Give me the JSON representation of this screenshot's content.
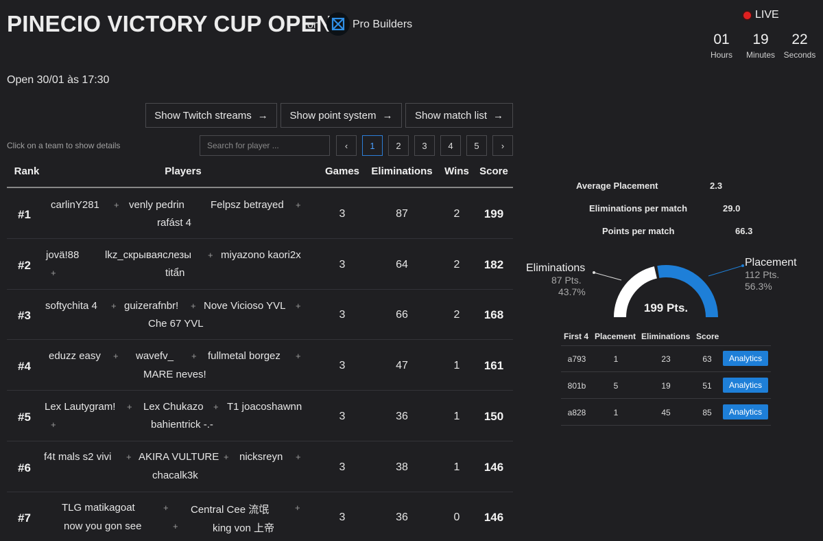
{
  "header": {
    "title": "PINECIO VICTORY CUP OPEN",
    "on_label": "on",
    "brand": "Pro Builders",
    "live_label": "LIVE",
    "countdown": [
      {
        "value": "01",
        "unit": "Hours"
      },
      {
        "value": "19",
        "unit": "Minutes"
      },
      {
        "value": "22",
        "unit": "Seconds"
      }
    ],
    "open_text": "Open 30/01 às 17:30"
  },
  "actions": {
    "twitch": "Show Twitch streams",
    "points": "Show point system",
    "matches": "Show match list",
    "arrow": "→"
  },
  "controls": {
    "hint": "Click on a team to show details",
    "search_placeholder": "Search for player ...",
    "prev": "‹",
    "next": "›",
    "pages": [
      "1",
      "2",
      "3",
      "4",
      "5"
    ],
    "active_page": "1"
  },
  "table": {
    "headers": {
      "rank": "Rank",
      "players": "Players",
      "games": "Games",
      "elims": "Eliminations",
      "wins": "Wins",
      "score": "Score"
    },
    "plus": "+",
    "rows": [
      {
        "rank": "#1",
        "p1": "carlinY281",
        "p2": "venly pedrin",
        "p3": "Felpsz betrayed",
        "p4": "rafást 4",
        "games": "3",
        "elims": "87",
        "wins": "2",
        "score": "199"
      },
      {
        "rank": "#2",
        "p1": "jovä!88",
        "p2": "lkz_скрываяслезы",
        "p3": "miyazono kaori2x",
        "p4": "titẩn",
        "games": "3",
        "elims": "64",
        "wins": "2",
        "score": "182"
      },
      {
        "rank": "#3",
        "p1": "softychita 4",
        "p2": "guizerafnbr!",
        "p3": "Nove Vicioso YVL",
        "p4": "Che 67 YVL",
        "games": "3",
        "elims": "66",
        "wins": "2",
        "score": "168"
      },
      {
        "rank": "#4",
        "p1": "eduzz easy",
        "p2": "wavefv_",
        "p3": "fullmetal borgez",
        "p4": "MARE neves!",
        "games": "3",
        "elims": "47",
        "wins": "1",
        "score": "161"
      },
      {
        "rank": "#5",
        "p1": "Lex Lautygram!",
        "p2": "Lex Chukazo",
        "p3": "T1 joacoshawnn",
        "p4": "bahientrick -.-",
        "games": "3",
        "elims": "36",
        "wins": "1",
        "score": "150"
      },
      {
        "rank": "#6",
        "p1": "f4t mals s2 vivi",
        "p2": "AKIRA VULTURE",
        "p3": "nicksreyn",
        "p4": "chacalk3k",
        "games": "3",
        "elims": "38",
        "wins": "1",
        "score": "146"
      },
      {
        "rank": "#7",
        "p1": "TLG matikagoat",
        "p2": "Central Cee 流氓",
        "p3": "now you gon see",
        "p4": "king von 上帝",
        "games": "3",
        "elims": "36",
        "wins": "0",
        "score": "146"
      }
    ]
  },
  "details": {
    "stats": [
      {
        "label": "Average Placement",
        "value": "2.3"
      },
      {
        "label": "Eliminations per match",
        "value": "29.0"
      },
      {
        "label": "Points per match",
        "value": "66.3"
      }
    ],
    "gauge": {
      "total": "199 Pts.",
      "elim_label": "Eliminations",
      "elim_pts": "87 Pts.",
      "elim_pct": "43.7%",
      "place_label": "Placement",
      "place_pts": "112 Pts.",
      "place_pct": "56.3%",
      "elim_fraction": 0.437,
      "elim_color": "#ffffff",
      "place_color": "#1e7fd8"
    },
    "matches": {
      "headers": {
        "first4": "First 4",
        "placement": "Placement",
        "elims": "Eliminations",
        "score": "Score"
      },
      "button": "Analytics",
      "rows": [
        {
          "id": "a793",
          "placement": "1",
          "elims": "23",
          "score": "63"
        },
        {
          "id": "801b",
          "placement": "5",
          "elims": "19",
          "score": "51"
        },
        {
          "id": "a828",
          "placement": "1",
          "elims": "45",
          "score": "85"
        }
      ]
    }
  }
}
